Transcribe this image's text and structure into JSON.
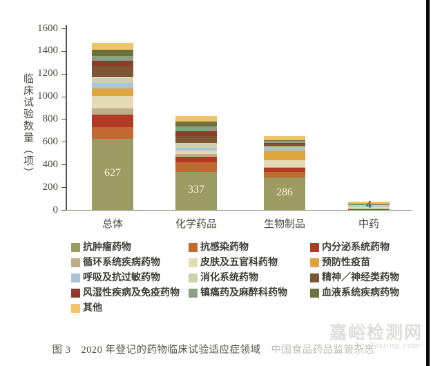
{
  "caption": {
    "prefix": "图 3",
    "text": "2020 年登记的药物临床试验适应症领域",
    "source": "中国食品药品监管杂志"
  },
  "watermark": {
    "site": "嘉峪检测网",
    "domain": "AnyTesting.com"
  },
  "chart_data": {
    "type": "bar",
    "stacked": true,
    "title": "",
    "xlabel": "",
    "ylabel": "临床试验数量（项）",
    "ylim": [
      0,
      1600
    ],
    "ytick_step": 200,
    "grid": false,
    "legend_position": "bottom",
    "categories": [
      "总体",
      "化学药品",
      "生物制品",
      "中药"
    ],
    "segment_value_labels": [
      "627",
      "337",
      "286",
      "4"
    ],
    "series": [
      {
        "name": "抗肿瘤药物",
        "color": "#9b9b62",
        "values": [
          627,
          337,
          286,
          4
        ]
      },
      {
        "name": "抗感染药物",
        "color": "#c06a32",
        "values": [
          100,
          85,
          48,
          3
        ]
      },
      {
        "name": "内分泌系统药物",
        "color": "#b23a25",
        "values": [
          115,
          47,
          37,
          2
        ]
      },
      {
        "name": "循环系统疾病药物",
        "color": "#bfae8a",
        "values": [
          50,
          24,
          6,
          3
        ]
      },
      {
        "name": "皮肤及五官科药物",
        "color": "#e4dbb6",
        "values": [
          110,
          30,
          60,
          10
        ]
      },
      {
        "name": "预防性疫苗",
        "color": "#dda440",
        "values": [
          67,
          0,
          87,
          0
        ]
      },
      {
        "name": "呼吸及抗过敏药物",
        "color": "#a9c4d8",
        "values": [
          48,
          25,
          28,
          8
        ]
      },
      {
        "name": "消化系统药物",
        "color": "#cdd1ad",
        "values": [
          48,
          45,
          8,
          12
        ]
      },
      {
        "name": "精神／神经类药物",
        "color": "#7e5634",
        "values": [
          103,
          55,
          20,
          5
        ]
      },
      {
        "name": "风湿性疾病及免疫药物",
        "color": "#8e3c2a",
        "values": [
          48,
          43,
          12,
          2
        ]
      },
      {
        "name": "镇痛药及麻醉科药物",
        "color": "#8ba185",
        "values": [
          42,
          46,
          15,
          2
        ]
      },
      {
        "name": "血液系统疾病药物",
        "color": "#70703a",
        "values": [
          54,
          43,
          10,
          3
        ]
      },
      {
        "name": "其他",
        "color": "#f2c469",
        "values": [
          61,
          48,
          34,
          20
        ]
      }
    ]
  }
}
